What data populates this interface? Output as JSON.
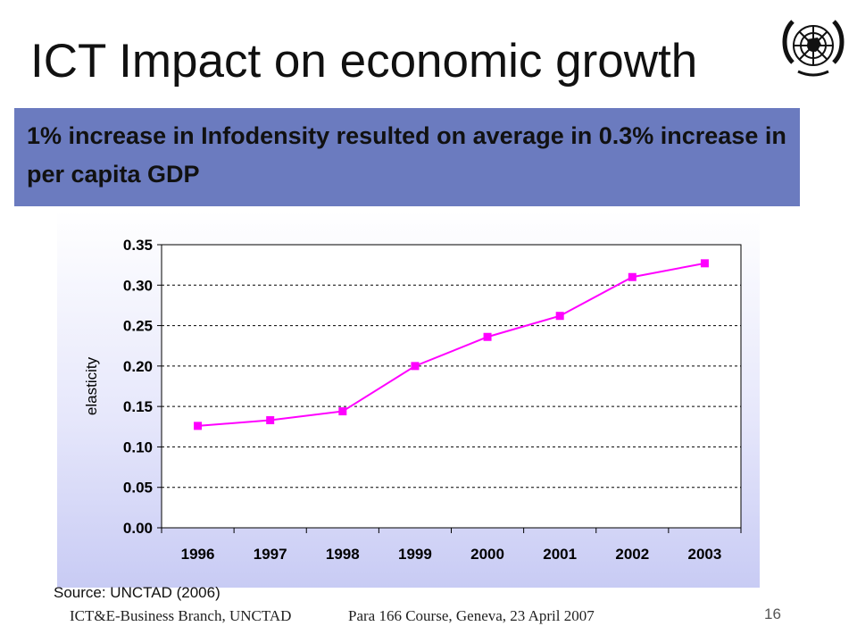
{
  "slide": {
    "title": "ICT Impact on economic growth",
    "banner_text": "1% increase in Infodensity resulted on average in 0.3% increase in per capita GDP",
    "source": "Source: UNCTAD (2006)",
    "footer_left": "ICT&E-Business Branch, UNCTAD",
    "footer_center": "Para 166 Course, Geneva, 23 April 2007",
    "page_number": "16",
    "logo_icon": "un-emblem-icon"
  },
  "colors": {
    "banner": "#6b7bbf",
    "series": "#ff00ff",
    "chart_bg_top": "#ffffff",
    "chart_bg_bottom": "#c8cbf4"
  },
  "chart_data": {
    "type": "line",
    "title": "",
    "xlabel": "",
    "ylabel": "elasticity",
    "categories": [
      "1996",
      "1997",
      "1998",
      "1999",
      "2000",
      "2001",
      "2002",
      "2003"
    ],
    "series": [
      {
        "values": [
          0.126,
          0.133,
          0.144,
          0.2,
          0.236,
          0.262,
          0.31,
          0.327
        ]
      }
    ],
    "ylim": [
      0,
      0.35
    ],
    "yticks": [
      "0.00",
      "0.05",
      "0.10",
      "0.15",
      "0.20",
      "0.25",
      "0.30",
      "0.35"
    ],
    "grid": true,
    "legend": "none"
  }
}
